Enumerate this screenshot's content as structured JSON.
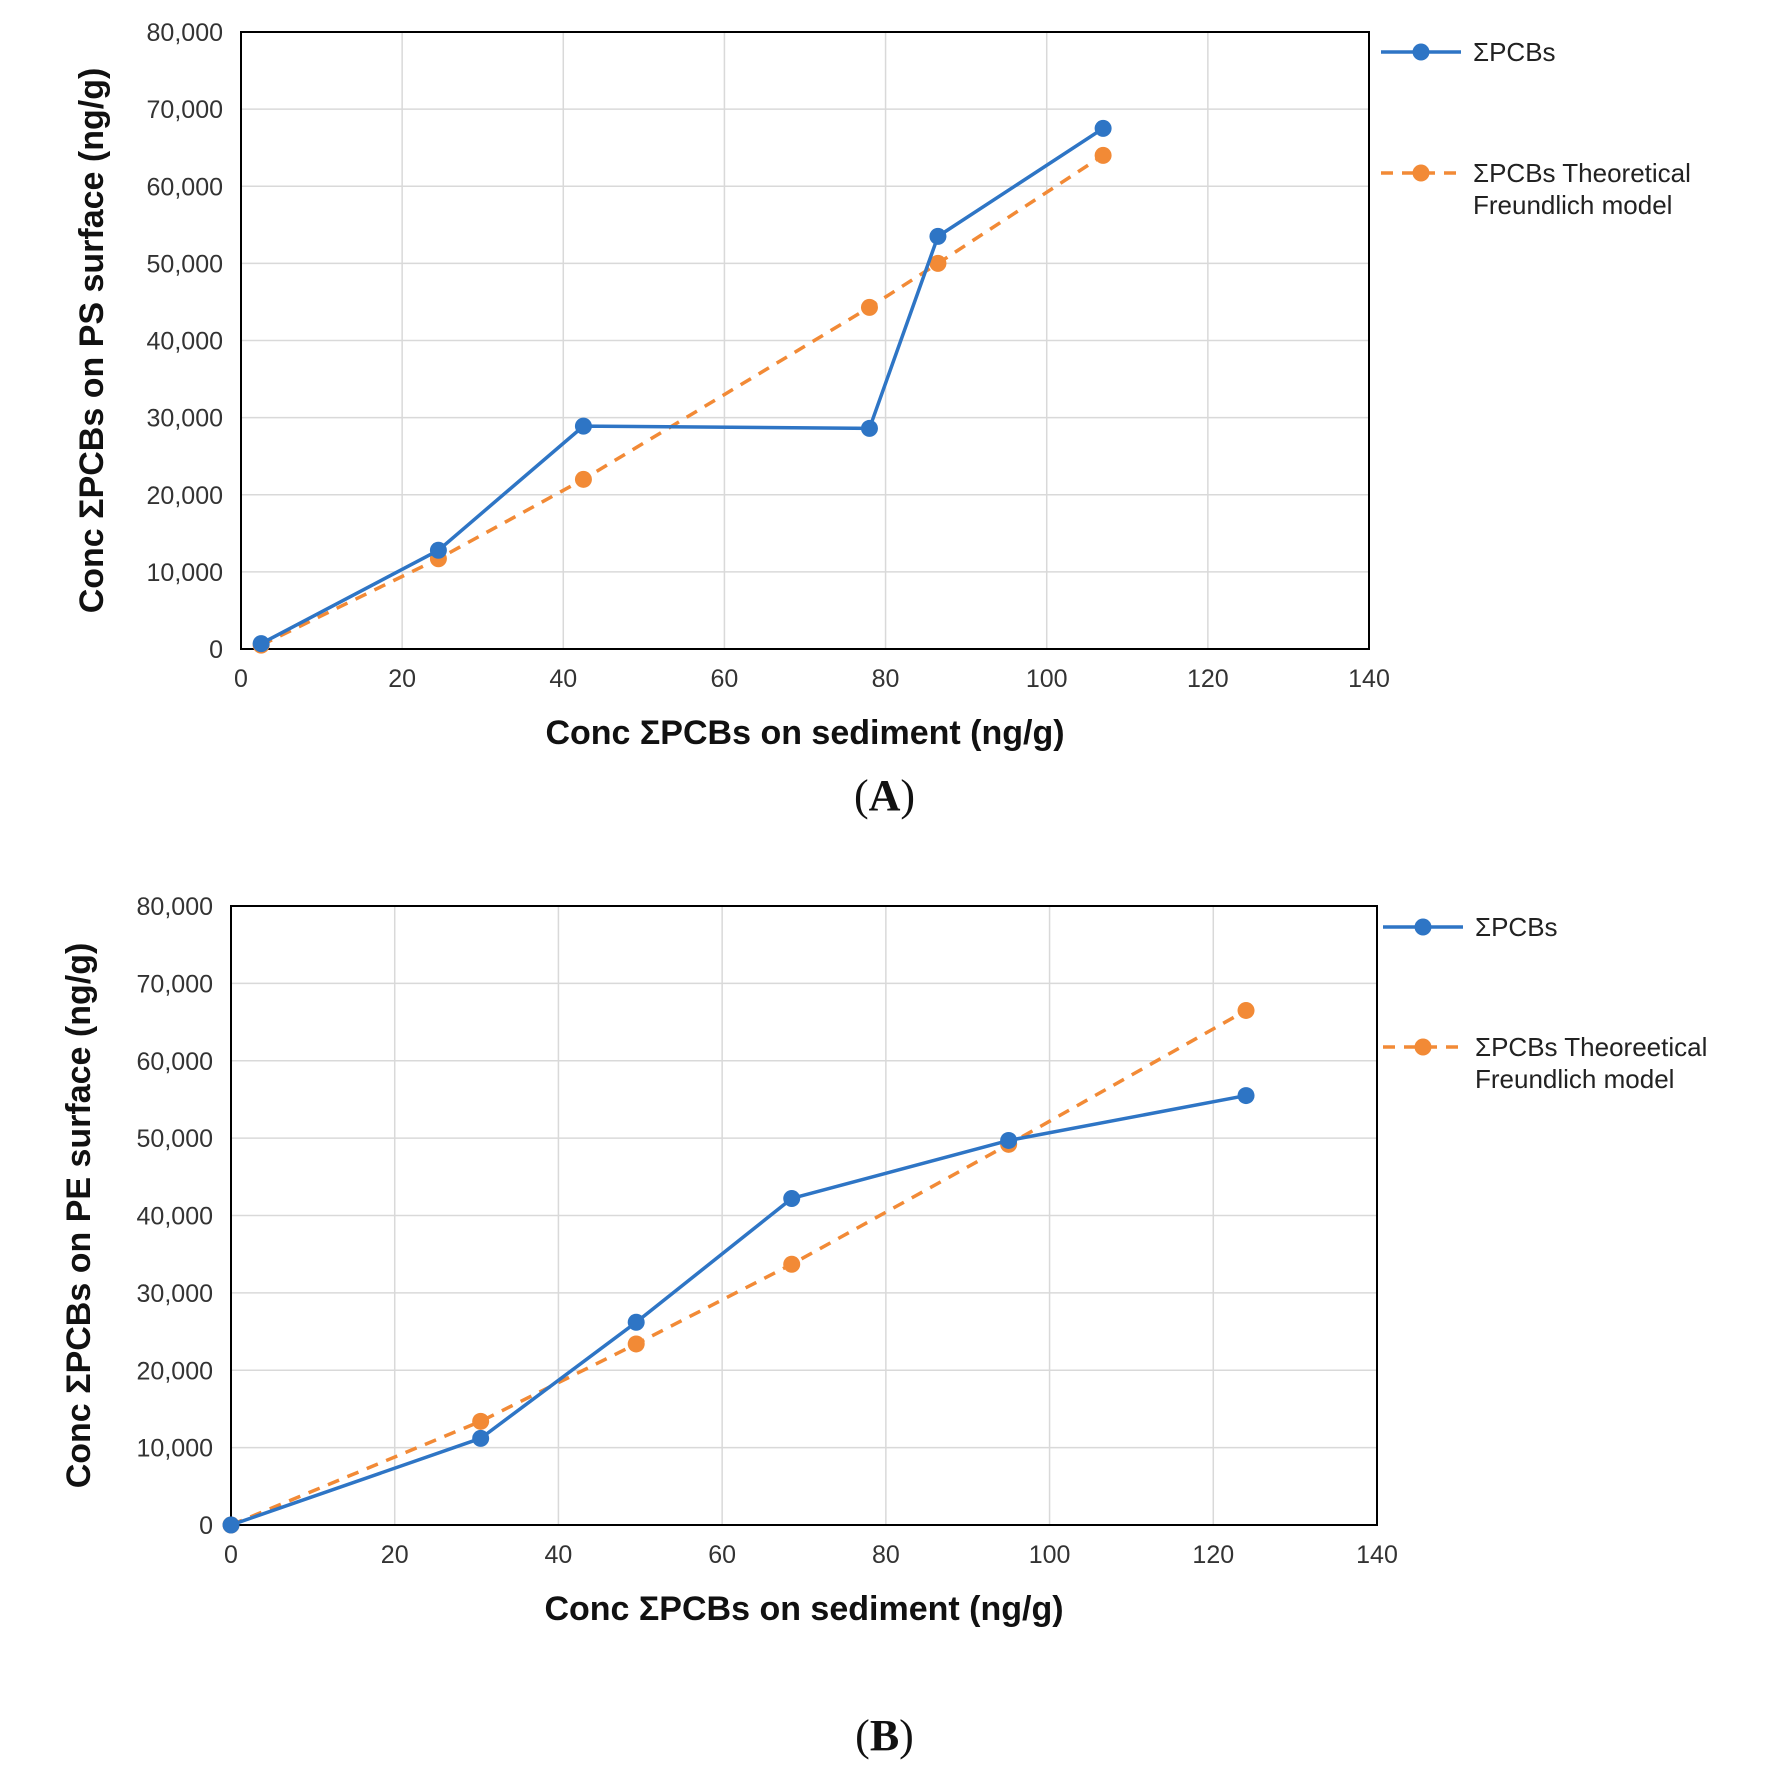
{
  "chart_data": [
    {
      "id": "A",
      "type": "line",
      "caption_label": "A",
      "xlabel": "Conc ΣPCBs on sediment (ng/g)",
      "ylabel": "Conc ΣPCBs on PS surface (ng/g)",
      "xlim": [
        0,
        140
      ],
      "ylim": [
        0,
        80000
      ],
      "xticks": [
        0,
        20,
        40,
        60,
        80,
        100,
        120,
        140
      ],
      "yticks": [
        0,
        10000,
        20000,
        30000,
        40000,
        50000,
        60000,
        70000,
        80000
      ],
      "ytick_labels": [
        "0",
        "10,000",
        "20,000",
        "30,000",
        "40,000",
        "50,000",
        "60,000",
        "70,000",
        "80,000"
      ],
      "grid": true,
      "legend_position": "right",
      "series": [
        {
          "name": "ΣPCBs",
          "color": "#2e75c5",
          "dash": false,
          "x": [
            2.5,
            24.5,
            42.5,
            78,
            86.5,
            107
          ],
          "y": [
            700,
            12800,
            28900,
            28600,
            53500,
            67500
          ]
        },
        {
          "name": "ΣPCBs Theoretical Freundlich model",
          "legend_lines": [
            "ΣPCBs Theoretical",
            "Freundlich model"
          ],
          "color": "#f28a36",
          "dash": true,
          "x": [
            2.5,
            24.5,
            42.5,
            78,
            86.5,
            107
          ],
          "y": [
            500,
            11700,
            22000,
            44300,
            50000,
            64000
          ]
        }
      ]
    },
    {
      "id": "B",
      "type": "line",
      "caption_label": "B",
      "xlabel": "Conc ΣPCBs on sediment (ng/g)",
      "ylabel": "Conc ΣPCBs on PE surface (ng/g)",
      "xlim": [
        0,
        140
      ],
      "ylim": [
        0,
        80000
      ],
      "xticks": [
        0,
        20,
        40,
        60,
        80,
        100,
        120,
        140
      ],
      "yticks": [
        0,
        10000,
        20000,
        30000,
        40000,
        50000,
        60000,
        70000,
        80000
      ],
      "ytick_labels": [
        "0",
        "10,000",
        "20,000",
        "30,000",
        "40,000",
        "50,000",
        "60,000",
        "70,000",
        "80,000"
      ],
      "grid": true,
      "legend_position": "right",
      "series": [
        {
          "name": "ΣPCBs",
          "color": "#2e75c5",
          "dash": false,
          "x": [
            0,
            30.5,
            49.5,
            68.5,
            95,
            124
          ],
          "y": [
            0,
            11200,
            26200,
            42200,
            49700,
            55500
          ]
        },
        {
          "name": "ΣPCBs Theoreetical Freundlich model",
          "legend_lines": [
            "ΣPCBs Theoreetical",
            "Freundlich model"
          ],
          "color": "#f28a36",
          "dash": true,
          "x": [
            0,
            30.5,
            49.5,
            68.5,
            95,
            124
          ],
          "y": [
            0,
            13400,
            23400,
            33700,
            49200,
            66500
          ]
        }
      ]
    }
  ]
}
